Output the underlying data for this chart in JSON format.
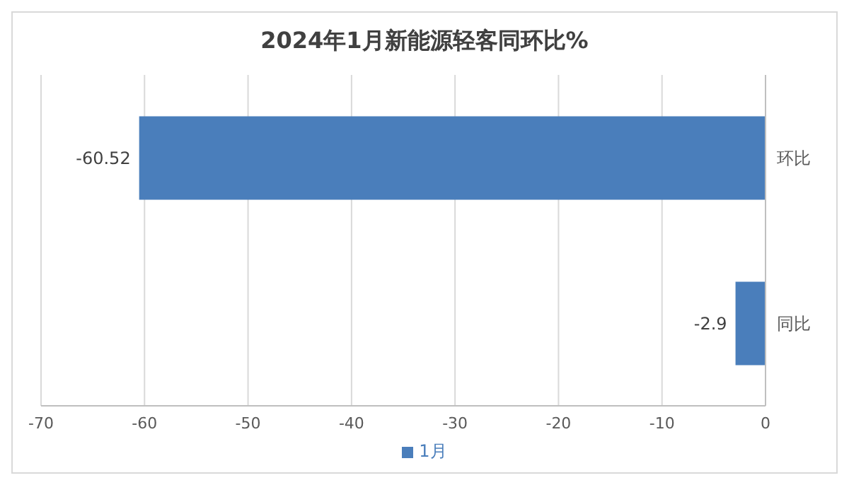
{
  "chart_data": {
    "type": "bar",
    "orientation": "horizontal",
    "title": "2024年1月新能源轻客同环比%",
    "categories": [
      "环比",
      "同比"
    ],
    "series": [
      {
        "name": "1月",
        "color": "#4a7ebb",
        "values": [
          -60.52,
          -2.9
        ]
      }
    ],
    "xlim": [
      -70,
      0
    ],
    "xticks": [
      -70,
      -60,
      -50,
      -40,
      -30,
      -20,
      -10,
      0
    ],
    "grid": "x",
    "legend": "bottom",
    "data_labels": true
  }
}
